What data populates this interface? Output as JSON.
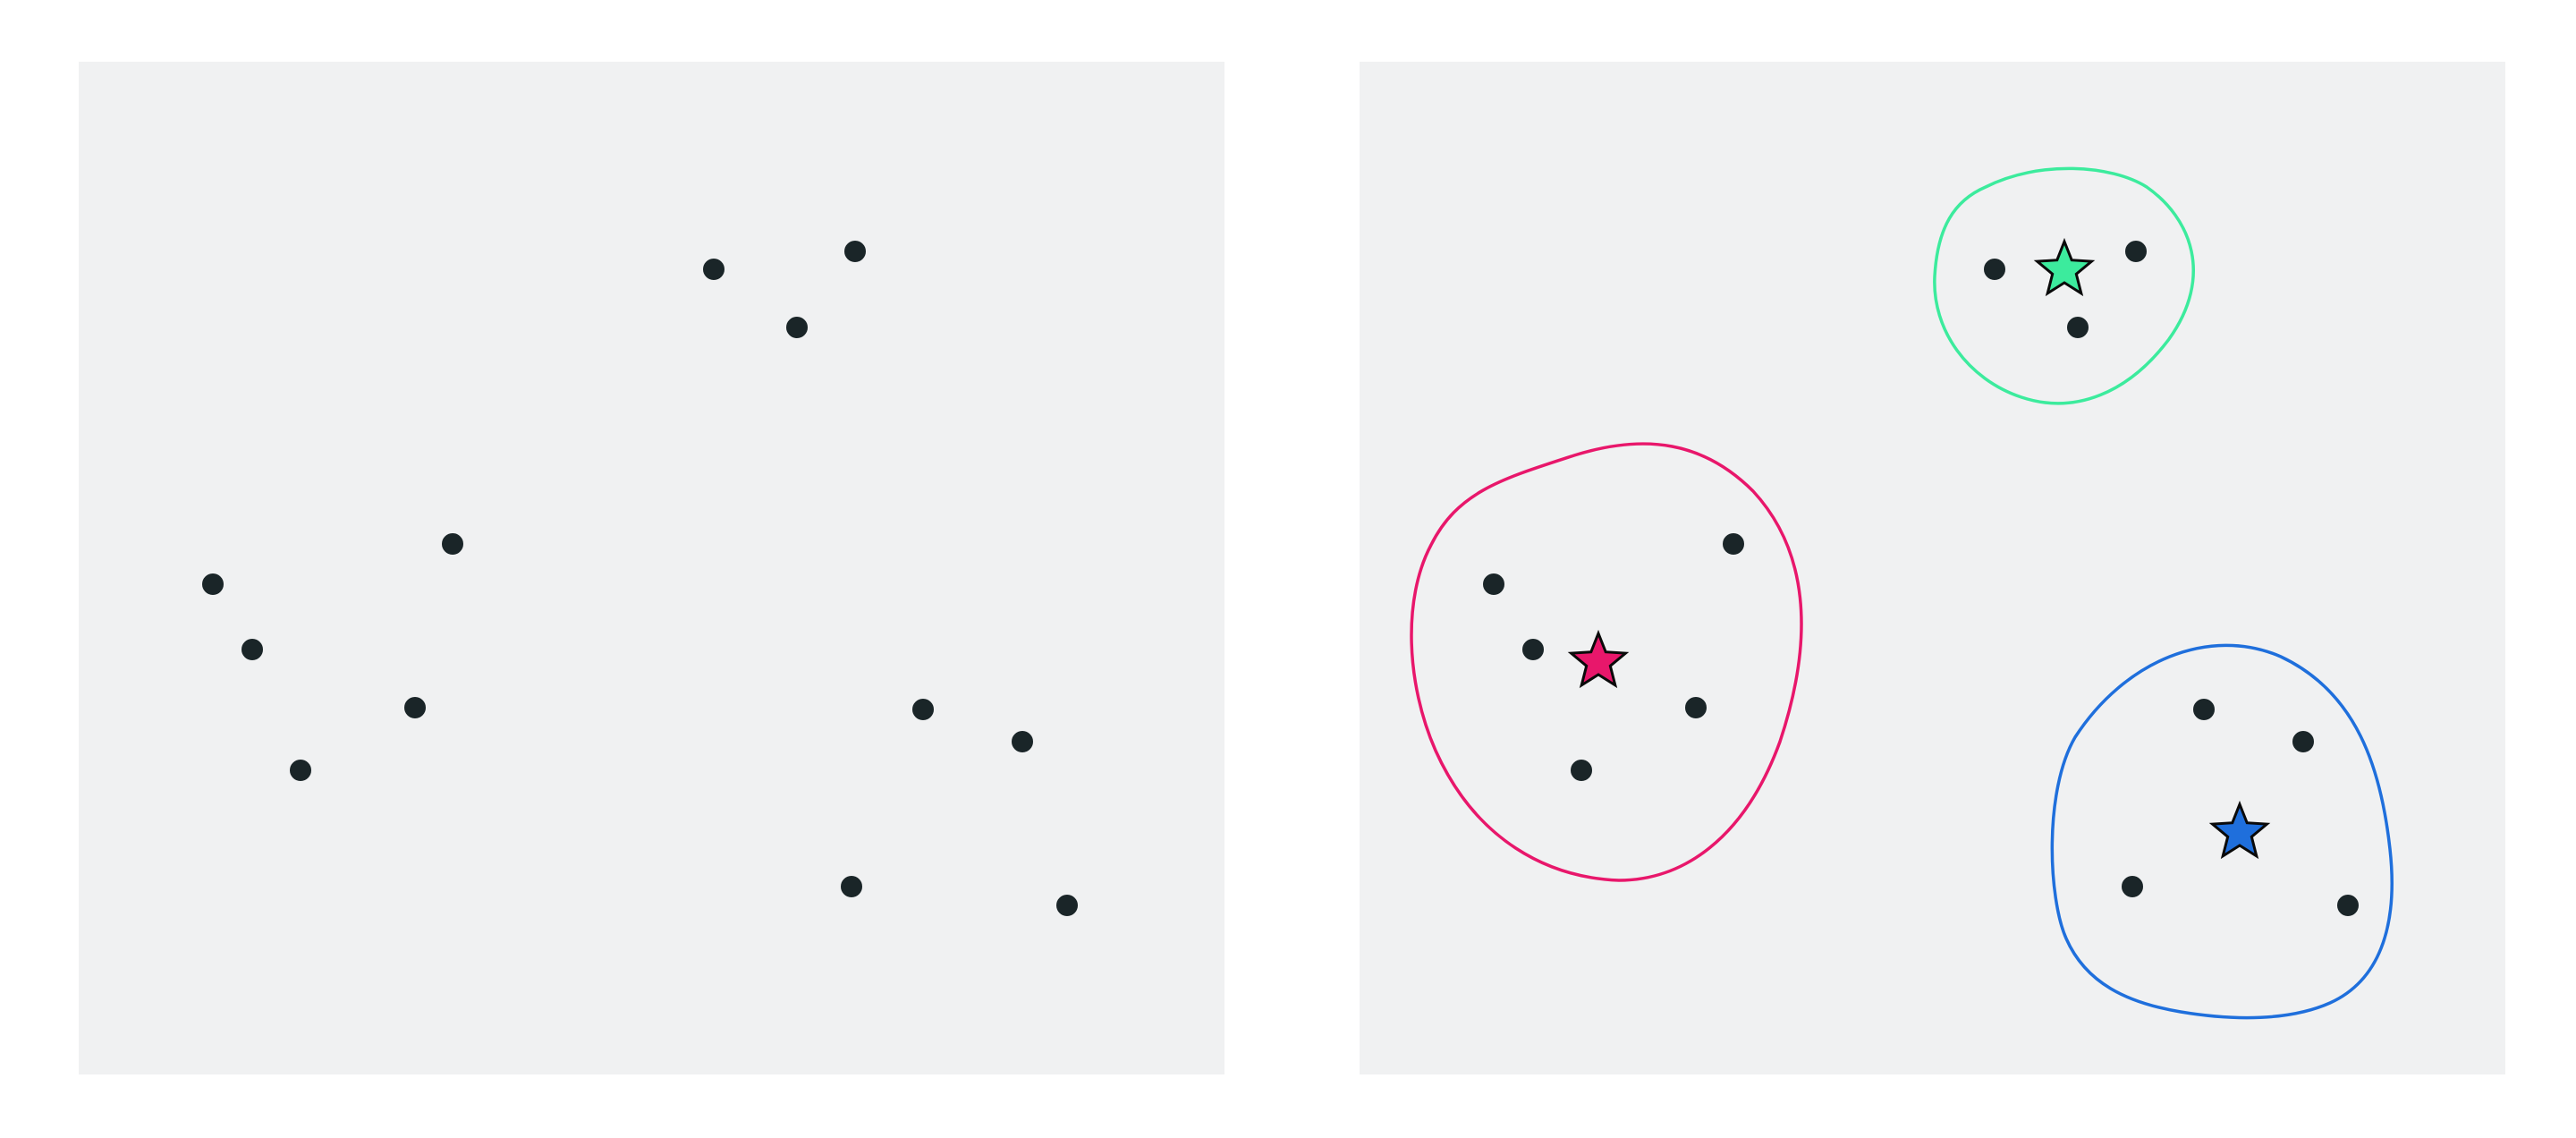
{
  "figure": {
    "background_color": "#ffffff",
    "panel_color": "#f0f1f2",
    "point_color": "#1a2528",
    "point_outline": "#f0f1f2",
    "centroid_outline": "#0a0a0a",
    "clusters": [
      {
        "id": "green",
        "color": "#3ceb9d",
        "centroid_icon": "star-icon"
      },
      {
        "id": "pink",
        "color": "#e8176b",
        "centroid_icon": "star-icon"
      },
      {
        "id": "blue",
        "color": "#1f6fdc",
        "centroid_icon": "star-icon"
      }
    ]
  },
  "left_panel": {
    "kind": "unlabeled-points"
  },
  "right_panel": {
    "kind": "clustered-points"
  }
}
